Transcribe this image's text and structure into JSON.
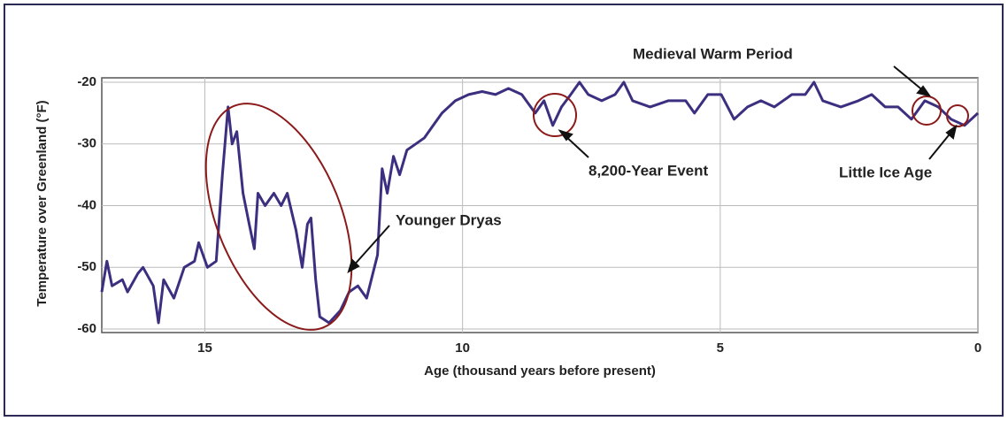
{
  "chart_data": {
    "type": "line",
    "ylabel": "Temperature over Greenland (°F)",
    "xlabel": "Age (thousand years before present)",
    "annotations": [
      "Medieval Warm Period",
      "Younger Dryas",
      "8,200-Year Event",
      "Little Ice Age"
    ],
    "color": "#3d2f80",
    "xlim": [
      17,
      0
    ],
    "xticks": [
      15,
      10,
      5,
      0
    ],
    "ylim": [
      -60,
      -20
    ],
    "yticks": [
      -60,
      -50,
      -40,
      -30,
      -20
    ],
    "grid": true,
    "x": [
      17.0,
      16.9,
      16.8,
      16.6,
      16.5,
      16.3,
      16.2,
      16.0,
      15.9,
      15.8,
      15.6,
      15.4,
      15.2,
      15.12,
      14.95,
      14.78,
      14.66,
      14.55,
      14.47,
      14.38,
      14.26,
      14.14,
      14.04,
      13.97,
      13.83,
      13.66,
      13.52,
      13.4,
      13.23,
      13.11,
      13.01,
      12.94,
      12.85,
      12.77,
      12.59,
      12.37,
      12.2,
      12.03,
      11.86,
      11.74,
      11.65,
      11.56,
      11.46,
      11.34,
      11.22,
      11.08,
      10.91,
      10.74,
      10.57,
      10.4,
      10.14,
      9.88,
      9.62,
      9.36,
      9.11,
      8.85,
      8.59,
      8.42,
      8.25,
      8.08,
      7.9,
      7.73,
      7.56,
      7.3,
      7.04,
      6.87,
      6.7,
      6.36,
      6.01,
      5.67,
      5.5,
      5.24,
      4.98,
      4.73,
      4.47,
      4.21,
      3.95,
      3.61,
      3.35,
      3.18,
      3.01,
      2.66,
      2.32,
      2.06,
      1.8,
      1.55,
      1.29,
      1.03,
      0.77,
      0.52,
      0.26,
      0
    ],
    "values": [
      -54,
      -49,
      -53,
      -52,
      -54,
      -51,
      -50,
      -53,
      -59,
      -52,
      -55,
      -50,
      -49,
      -46,
      -50,
      -49,
      -35,
      -24,
      -30,
      -28,
      -38,
      -43,
      -47,
      -38,
      -40,
      -38,
      -40,
      -38,
      -44,
      -50,
      -43,
      -42,
      -52,
      -58,
      -59,
      -57,
      -54,
      -53,
      -55,
      -51,
      -48,
      -34,
      -38,
      -32,
      -35,
      -31,
      -30,
      -29,
      -27,
      -25,
      -23,
      -22,
      -21.5,
      -22,
      -21,
      -22,
      -25,
      -23,
      -27,
      -24,
      -22,
      -20,
      -22,
      -23,
      -22,
      -20,
      -23,
      -24,
      -23,
      -23,
      -25,
      -22,
      -22,
      -26,
      -24,
      -23,
      -24,
      -22,
      -22,
      -20,
      -23,
      -24,
      -23,
      -22,
      -24,
      -24,
      -26,
      -23,
      -24,
      -26,
      -27,
      -25
    ]
  }
}
